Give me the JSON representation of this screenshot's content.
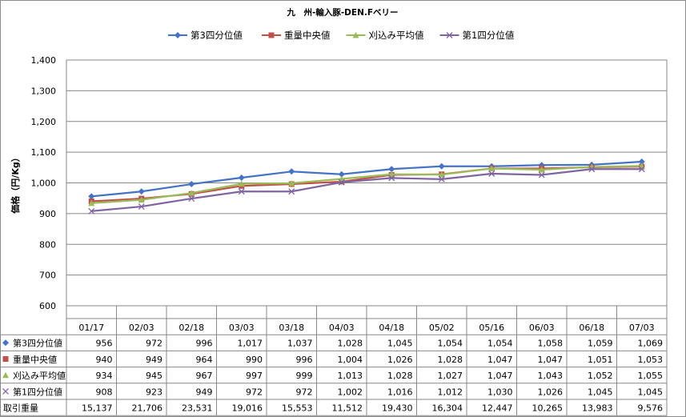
{
  "chart_data": {
    "type": "line",
    "title": "九　州-輸入豚-DEN.Fベリー",
    "ylabel": "価格（円/Kg）",
    "xlabel": "",
    "ylim": [
      600,
      1400
    ],
    "yticks": [
      "600",
      "700",
      "800",
      "900",
      "1,000",
      "1,100",
      "1,200",
      "1,300",
      "1,400"
    ],
    "grid": "horizontal",
    "legend_position": "top",
    "categories": [
      "01/17",
      "02/03",
      "02/18",
      "03/03",
      "03/18",
      "04/03",
      "04/18",
      "05/02",
      "05/16",
      "06/03",
      "06/18",
      "07/03"
    ],
    "series": [
      {
        "name": "第3四分位値",
        "color": "#4472c4",
        "marker": "diamond",
        "values": [
          956,
          972,
          996,
          1017,
          1037,
          1028,
          1045,
          1054,
          1054,
          1058,
          1059,
          1069
        ],
        "labels": [
          "956",
          "972",
          "996",
          "1,017",
          "1,037",
          "1,028",
          "1,045",
          "1,054",
          "1,054",
          "1,058",
          "1,059",
          "1,069"
        ]
      },
      {
        "name": "重量中央値",
        "color": "#c0504d",
        "marker": "square",
        "values": [
          940,
          949,
          964,
          990,
          996,
          1004,
          1026,
          1028,
          1047,
          1047,
          1051,
          1053
        ],
        "labels": [
          "940",
          "949",
          "964",
          "990",
          "996",
          "1,004",
          "1,026",
          "1,028",
          "1,047",
          "1,047",
          "1,051",
          "1,053"
        ]
      },
      {
        "name": "刈込み平均値",
        "color": "#9bbb59",
        "marker": "triangle",
        "values": [
          934,
          945,
          967,
          997,
          999,
          1013,
          1028,
          1027,
          1047,
          1043,
          1052,
          1055
        ],
        "labels": [
          "934",
          "945",
          "967",
          "997",
          "999",
          "1,013",
          "1,028",
          "1,027",
          "1,047",
          "1,043",
          "1,052",
          "1,055"
        ]
      },
      {
        "name": "第1四分位値",
        "color": "#8064a2",
        "marker": "x",
        "values": [
          908,
          923,
          949,
          972,
          972,
          1002,
          1016,
          1012,
          1030,
          1026,
          1045,
          1045
        ],
        "labels": [
          "908",
          "923",
          "949",
          "972",
          "972",
          "1,002",
          "1,016",
          "1,012",
          "1,030",
          "1,026",
          "1,045",
          "1,045"
        ]
      }
    ],
    "extra_rows": [
      {
        "name": "取引重量",
        "labels": [
          "15,137",
          "21,706",
          "23,531",
          "19,016",
          "15,553",
          "11,512",
          "19,430",
          "16,304",
          "12,447",
          "10,265",
          "13,983",
          "9,576"
        ]
      }
    ]
  }
}
